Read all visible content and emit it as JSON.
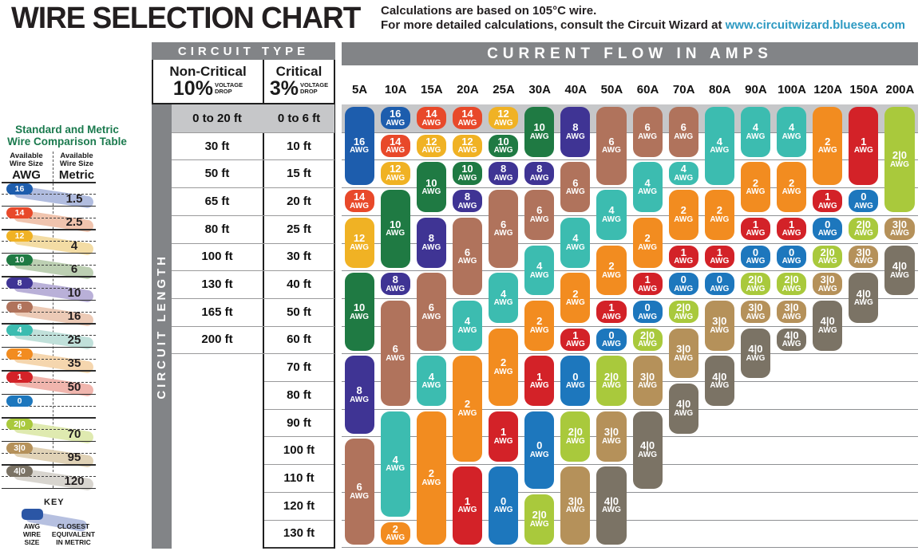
{
  "title": "WIRE SELECTION CHART",
  "subtitle": {
    "line1": "Calculations are based on 105°C wire.",
    "line2": "For more detailed calculations, consult the Circuit Wizard at",
    "link": "www.circuitwizard.bluesea.com"
  },
  "table": {
    "circuit_type_label": "CIRCUIT TYPE",
    "current_flow_label": "CURRENT FLOW IN AMPS",
    "circuit_length_label": "CIRCUIT LENGTH",
    "non_critical_title": "Non-Critical",
    "non_critical_pct": "10%",
    "critical_title": "Critical",
    "critical_pct": "3%",
    "voltage_drop_l1": "VOLTAGE",
    "voltage_drop_l2": "DROP"
  },
  "sidebar": {
    "title_line1": "Standard and Metric",
    "title_line2": "Wire Comparison Table",
    "avail_l1": "Available",
    "avail_l2": "Wire Size",
    "col1_unit": "AWG",
    "col2_unit": "Metric",
    "rows": [
      {
        "awg": "16",
        "metric": "1.5"
      },
      {
        "awg": "14",
        "metric": "2.5"
      },
      {
        "awg": "12",
        "metric": "4"
      },
      {
        "awg": "10",
        "metric": "6"
      },
      {
        "awg": "8",
        "metric": "10"
      },
      {
        "awg": "6",
        "metric": "16"
      },
      {
        "awg": "4",
        "metric": "25"
      },
      {
        "awg": "2",
        "metric": "35"
      },
      {
        "awg": "1",
        "metric": "50"
      },
      {
        "awg": "0",
        "metric": ""
      },
      {
        "awg": "2|0",
        "metric": "70"
      },
      {
        "awg": "3|0",
        "metric": "95"
      },
      {
        "awg": "4|0",
        "metric": "120"
      }
    ],
    "key": {
      "label": "KEY",
      "left": "AWG\nWIRE\nSIZE",
      "right": "CLOSEST\nEQUIVALENT\nIN METRIC"
    }
  },
  "colors": {
    "header_bar": "#828487",
    "top_row_band": "#c6c7c9",
    "grid_line": "#8e9093",
    "length_line": "#9a9a9b",
    "link": "#2e9ac2"
  },
  "chart_data": {
    "type": "heatmap",
    "title": "WIRE SELECTION CHART",
    "xlabel": "CURRENT FLOW IN AMPS",
    "ylabel": "CIRCUIT LENGTH",
    "unit": "AWG",
    "columns": [
      "5A",
      "10A",
      "15A",
      "20A",
      "25A",
      "30A",
      "40A",
      "50A",
      "60A",
      "70A",
      "80A",
      "90A",
      "100A",
      "120A",
      "150A",
      "200A"
    ],
    "rows": [
      {
        "non_critical": "0 to 20 ft",
        "critical": "0 to 6 ft"
      },
      {
        "non_critical": "30 ft",
        "critical": "10 ft"
      },
      {
        "non_critical": "50 ft",
        "critical": "15 ft"
      },
      {
        "non_critical": "65 ft",
        "critical": "20 ft"
      },
      {
        "non_critical": "80 ft",
        "critical": "25 ft"
      },
      {
        "non_critical": "100 ft",
        "critical": "30 ft"
      },
      {
        "non_critical": "130 ft",
        "critical": "40 ft"
      },
      {
        "non_critical": "165 ft",
        "critical": "50 ft"
      },
      {
        "non_critical": "200 ft",
        "critical": "60 ft"
      },
      {
        "non_critical": "",
        "critical": "70 ft"
      },
      {
        "non_critical": "",
        "critical": "80 ft"
      },
      {
        "non_critical": "",
        "critical": "90 ft"
      },
      {
        "non_critical": "",
        "critical": "100 ft"
      },
      {
        "non_critical": "",
        "critical": "110 ft"
      },
      {
        "non_critical": "",
        "critical": "120 ft"
      },
      {
        "non_critical": "",
        "critical": "130 ft"
      }
    ],
    "grid": {
      "5A": [
        "16",
        "16",
        "16",
        "14",
        "12",
        "12",
        "10",
        "10",
        "10",
        "8",
        "8",
        "8",
        "6",
        "6",
        "6",
        "6"
      ],
      "10A": [
        "16",
        "14",
        "12",
        "10",
        "10",
        "10",
        "8",
        "6",
        "6",
        "6",
        "6",
        "4",
        "4",
        "4",
        "4",
        "2"
      ],
      "15A": [
        "14",
        "12",
        "10",
        "10",
        "8",
        "8",
        "6",
        "6",
        "6",
        "4",
        "4",
        "2",
        "2",
        "2",
        "2",
        "2"
      ],
      "20A": [
        "14",
        "12",
        "10",
        "8",
        "6",
        "6",
        "6",
        "4",
        "4",
        "2",
        "2",
        "2",
        "2",
        "1",
        "1",
        "1"
      ],
      "25A": [
        "12",
        "10",
        "8",
        "6",
        "6",
        "6",
        "4",
        "4",
        "2",
        "2",
        "2",
        "1",
        "1",
        "0",
        "0",
        "0"
      ],
      "30A": [
        "10",
        "10",
        "8",
        "6",
        "6",
        "4",
        "4",
        "2",
        "2",
        "1",
        "1",
        "0",
        "0",
        "0",
        "2|0",
        "2|0"
      ],
      "40A": [
        "8",
        "8",
        "6",
        "6",
        "4",
        "4",
        "2",
        "2",
        "1",
        "0",
        "0",
        "2|0",
        "2|0",
        "3|0",
        "3|0",
        "3|0"
      ],
      "50A": [
        "6",
        "6",
        "6",
        "4",
        "4",
        "2",
        "2",
        "1",
        "0",
        "2|0",
        "2|0",
        "3|0",
        "3|0",
        "4|0",
        "4|0",
        "4|0"
      ],
      "60A": [
        "6",
        "6",
        "4",
        "4",
        "2",
        "2",
        "1",
        "0",
        "2|0",
        "3|0",
        "3|0",
        "4|0",
        "4|0",
        "4|0",
        null,
        null
      ],
      "70A": [
        "6",
        "6",
        "4",
        "2",
        "2",
        "1",
        "0",
        "2|0",
        "3|0",
        "3|0",
        "4|0",
        "4|0",
        null,
        null,
        null,
        null
      ],
      "80A": [
        "4",
        "4",
        "4",
        "2",
        "2",
        "1",
        "0",
        "3|0",
        "3|0",
        "4|0",
        "4|0",
        null,
        null,
        null,
        null,
        null
      ],
      "90A": [
        "4",
        "4",
        "2",
        "2",
        "1",
        "0",
        "2|0",
        "3|0",
        "4|0",
        "4|0",
        null,
        null,
        null,
        null,
        null,
        null
      ],
      "100A": [
        "4",
        "4",
        "2",
        "2",
        "1",
        "0",
        "2|0",
        "3|0",
        "4|0",
        null,
        null,
        null,
        null,
        null,
        null,
        null
      ],
      "120A": [
        "2",
        "2",
        "2",
        "1",
        "0",
        "2|0",
        "3|0",
        "4|0",
        "4|0",
        null,
        null,
        null,
        null,
        null,
        null,
        null
      ],
      "150A": [
        "1",
        "1",
        "1",
        "0",
        "2|0",
        "3|0",
        "4|0",
        "4|0",
        null,
        null,
        null,
        null,
        null,
        null,
        null,
        null
      ],
      "200A": [
        "2|0",
        "2|0",
        "2|0",
        "2|0",
        "3|0",
        "4|0",
        "4|0",
        null,
        null,
        null,
        null,
        null,
        null,
        null,
        null,
        null
      ]
    },
    "awg_colors": {
      "16": "#1d5dad",
      "14": "#e8492a",
      "12": "#f0b224",
      "10": "#1f7a43",
      "8": "#3f3494",
      "6": "#b0735c",
      "4": "#3cbcb0",
      "2": "#f28c20",
      "1": "#d32228",
      "0": "#1d77bd",
      "2|0": "#a9c93c",
      "3|0": "#b5915a",
      "4|0": "#7b7365"
    },
    "awg_light_colors": {
      "16": "#b0bcdf",
      "14": "#f0c4ae",
      "12": "#f3dca4",
      "10": "#bccfb2",
      "8": "#b9b0d8",
      "6": "#eccab6",
      "4": "#c0e0da",
      "2": "#f5d6ae",
      "1": "#f0b5ad",
      "0": "",
      "2|0": "#dfeab0",
      "3|0": "#e0d2b6",
      "4|0": "#d8d5cf"
    },
    "key_colors": {
      "pill": "#2b56a5",
      "swoosh": "#b6c0e0"
    }
  }
}
